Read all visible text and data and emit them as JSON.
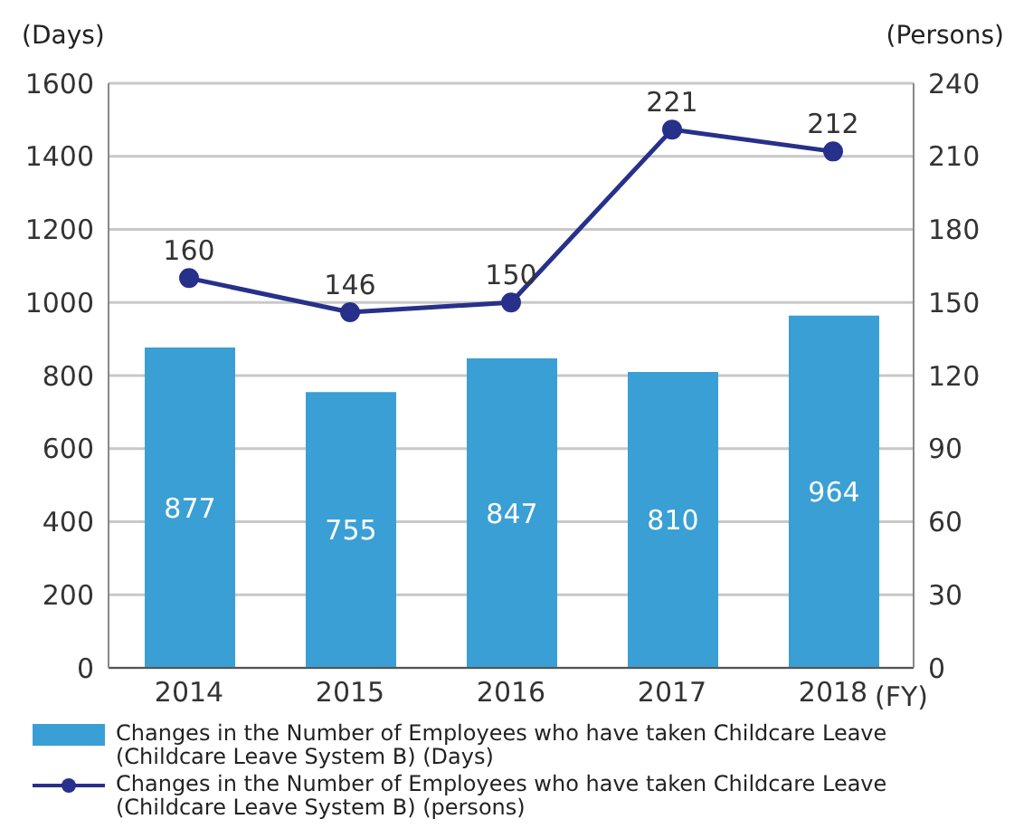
{
  "chart_data": {
    "type": "bar",
    "categories": [
      "2014",
      "2015",
      "2016",
      "2017",
      "2018"
    ],
    "series": [
      {
        "name": "Changes in the Number of Employees who have taken Childcare Leave (Childcare Leave System B) (Days)",
        "color": "#3a9fd4",
        "values": [
          877,
          755,
          847,
          810,
          964
        ]
      },
      {
        "name": "Changes in the Number of Employees who have taken Childcare Leave (Childcare Leave System B) (persons)",
        "type": "line",
        "axis": "y2",
        "color": "#27308a",
        "values": [
          160,
          146,
          150,
          221,
          212
        ]
      }
    ],
    "xlabel": "(FY)",
    "ylabel": "(Days)",
    "y2label": "(Persons)",
    "ylim": [
      0,
      1600
    ],
    "yticks": [
      0,
      200,
      400,
      600,
      800,
      1000,
      1200,
      1400,
      1600
    ],
    "y2lim": [
      0,
      240
    ],
    "y2ticks": [
      0,
      30,
      60,
      90,
      120,
      150,
      180,
      210,
      240
    ],
    "grid": "y",
    "legend": "bottom",
    "marker": "circle",
    "line_style": "solid",
    "data_labels": true
  }
}
